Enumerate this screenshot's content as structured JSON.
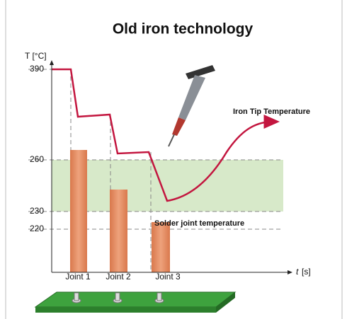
{
  "title": "Old iron technology",
  "y_axis": {
    "label": "T [°C]",
    "ticks": [
      "390",
      "260",
      "230",
      "220"
    ]
  },
  "x_axis": {
    "symbol": "t",
    "unit": "[s]"
  },
  "annotations": {
    "iron_tip": "Iron Tip Temperature",
    "solder_joint": "Solder joint temperature"
  },
  "joints": [
    "Joint 1",
    "Joint 2",
    "Joint 3"
  ]
}
